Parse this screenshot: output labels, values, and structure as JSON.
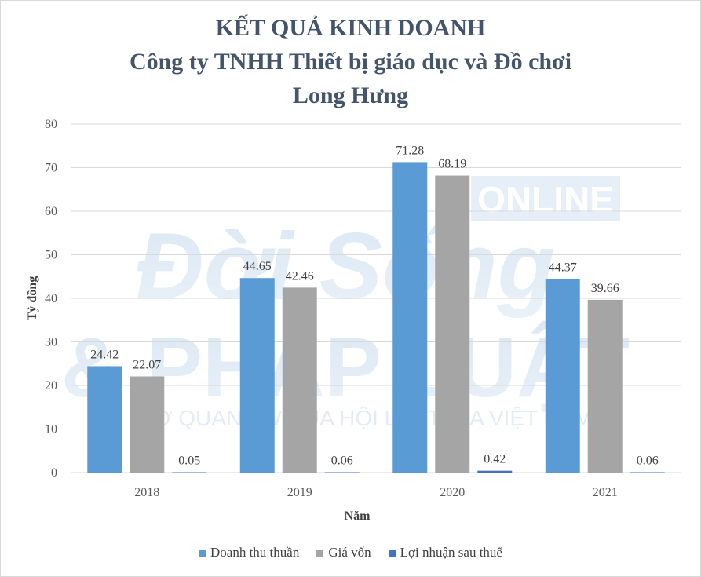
{
  "colors": {
    "series_1": "#5b9bd5",
    "series_2": "#a5a5a5",
    "series_3": "#4472c4",
    "title": "#44546a",
    "grid": "#d9d9d9"
  },
  "watermark": {
    "line1": "ONLINE",
    "line2": "Đời Sống",
    "line3": "& PHÁP LUẬT",
    "line4": "CƠ QUAN TW CỦA HỘI LUẬT GIA VIỆT NAM"
  },
  "chart_data": {
    "type": "bar",
    "title_lines": [
      "KẾT QUẢ KINH DOANH",
      "Công ty TNHH Thiết bị giáo dục và Đồ chơi",
      "Long Hưng"
    ],
    "xlabel": "Năm",
    "ylabel": "Tỷ đồng",
    "ylim": [
      0,
      80
    ],
    "yticks": [
      0,
      10,
      20,
      30,
      40,
      50,
      60,
      70,
      80
    ],
    "grid": true,
    "legend_position": "bottom",
    "categories": [
      "2018",
      "2019",
      "2020",
      "2021"
    ],
    "series": [
      {
        "name": "Doanh thu thuần",
        "values": [
          24.42,
          44.65,
          71.28,
          44.37
        ],
        "labels": [
          "24.42",
          "44.65",
          "71.28",
          "44.37"
        ]
      },
      {
        "name": "Giá vốn",
        "values": [
          22.07,
          42.46,
          68.19,
          39.66
        ],
        "labels": [
          "22.07",
          "42.46",
          "68.19",
          "39.66"
        ]
      },
      {
        "name": "Lợi nhuận  sau thuế",
        "values": [
          0.05,
          0.06,
          0.42,
          0.06
        ],
        "labels": [
          "0.05",
          "0.06",
          "0.42",
          "0.06"
        ]
      }
    ]
  }
}
